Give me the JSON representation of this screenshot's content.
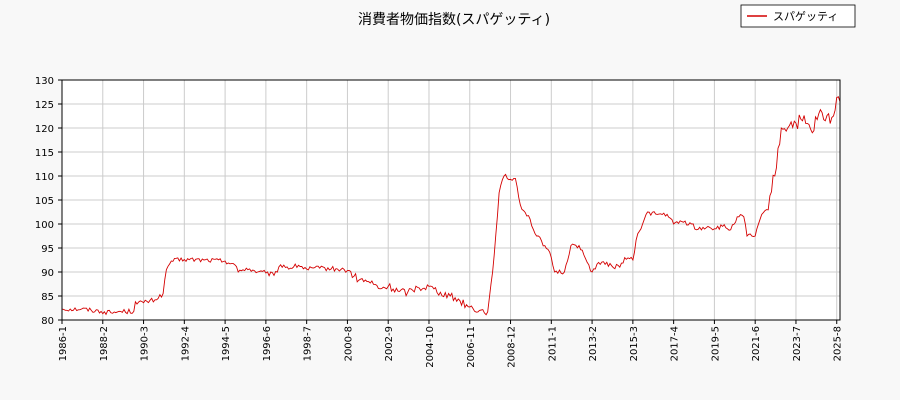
{
  "chart_data": {
    "type": "line",
    "title": "消費者物価指数(スパゲッティ)",
    "xlabel": "",
    "ylabel": "",
    "ylim": [
      80,
      130
    ],
    "y_ticks": [
      80,
      85,
      90,
      95,
      100,
      105,
      110,
      115,
      120,
      125,
      130
    ],
    "x_range": [
      "1986-1",
      "2025-10"
    ],
    "x_ticks": [
      "1986-1",
      "1988-2",
      "1990-3",
      "1992-4",
      "1994-5",
      "1996-6",
      "1998-7",
      "2000-8",
      "2002-9",
      "2004-10",
      "2006-11",
      "2008-12",
      "2011-1",
      "2013-2",
      "2015-3",
      "2017-4",
      "2019-5",
      "2021-6",
      "2023-7",
      "2025-8"
    ],
    "grid": true,
    "legend_position": "top-right",
    "series": [
      {
        "name": "スパゲッティ",
        "color": "#d40000",
        "points": [
          [
            "1986-1",
            82.3
          ],
          [
            "1987-1",
            82.3
          ],
          [
            "1988-1",
            81.8
          ],
          [
            "1988-7",
            81.5
          ],
          [
            "1989-1",
            81.8
          ],
          [
            "1989-9",
            81.8
          ],
          [
            "1989-10",
            83.8
          ],
          [
            "1990-3",
            83.6
          ],
          [
            "1990-10",
            84.2
          ],
          [
            "1991-3",
            85.5
          ],
          [
            "1991-5",
            90.5
          ],
          [
            "1991-8",
            92.3
          ],
          [
            "1992-4",
            92.6
          ],
          [
            "1993-4",
            92.5
          ],
          [
            "1994-5",
            92.3
          ],
          [
            "1994-11",
            91.5
          ],
          [
            "1995-1",
            90.0
          ],
          [
            "1995-6",
            90.8
          ],
          [
            "1996-1",
            90.0
          ],
          [
            "1996-6",
            89.8
          ],
          [
            "1996-11",
            89.3
          ],
          [
            "1997-3",
            91.5
          ],
          [
            "1997-9",
            90.8
          ],
          [
            "1998-2",
            91.4
          ],
          [
            "1998-7",
            90.6
          ],
          [
            "1999-3",
            90.8
          ],
          [
            "2000-2",
            90.6
          ],
          [
            "2000-8",
            90.3
          ],
          [
            "2001-3",
            88.3
          ],
          [
            "2001-9",
            88.0
          ],
          [
            "2002-4",
            86.5
          ],
          [
            "2002-9",
            87.0
          ],
          [
            "2003-3",
            86.0
          ],
          [
            "2003-9",
            85.8
          ],
          [
            "2004-3",
            86.8
          ],
          [
            "2004-10",
            87.0
          ],
          [
            "2005-5",
            85.8
          ],
          [
            "2005-11",
            85.0
          ],
          [
            "2006-5",
            84.0
          ],
          [
            "2006-11",
            82.7
          ],
          [
            "2007-5",
            82.0
          ],
          [
            "2007-10",
            81.7
          ],
          [
            "2007-11",
            84.5
          ],
          [
            "2008-1",
            90.0
          ],
          [
            "2008-3",
            98.0
          ],
          [
            "2008-5",
            106.5
          ],
          [
            "2008-8",
            110.0
          ],
          [
            "2008-12",
            109.3
          ],
          [
            "2009-3",
            109.5
          ],
          [
            "2009-6",
            104.0
          ],
          [
            "2009-12",
            101.0
          ],
          [
            "2010-3",
            98.0
          ],
          [
            "2010-9",
            95.5
          ],
          [
            "2011-1",
            93.0
          ],
          [
            "2011-3",
            90.0
          ],
          [
            "2011-9",
            90.0
          ],
          [
            "2012-1",
            95.5
          ],
          [
            "2012-6",
            95.5
          ],
          [
            "2012-11",
            92.0
          ],
          [
            "2013-2",
            90.0
          ],
          [
            "2013-6",
            92.0
          ],
          [
            "2014-2",
            91.3
          ],
          [
            "2014-7",
            91.0
          ],
          [
            "2014-10",
            93.0
          ],
          [
            "2015-3",
            92.5
          ],
          [
            "2015-6",
            98.0
          ],
          [
            "2015-9",
            100.0
          ],
          [
            "2015-12",
            102.5
          ],
          [
            "2016-6",
            102.0
          ],
          [
            "2016-12",
            102.0
          ],
          [
            "2017-4",
            100.0
          ],
          [
            "2017-9",
            100.5
          ],
          [
            "2018-3",
            100.0
          ],
          [
            "2018-6",
            98.8
          ],
          [
            "2019-1",
            99.5
          ],
          [
            "2019-5",
            99.0
          ],
          [
            "2019-10",
            99.5
          ],
          [
            "2020-3",
            98.8
          ],
          [
            "2020-7",
            101.5
          ],
          [
            "2020-11",
            101.5
          ],
          [
            "2021-1",
            97.5
          ],
          [
            "2021-6",
            97.5
          ],
          [
            "2021-9",
            101.0
          ],
          [
            "2022-1",
            103.0
          ],
          [
            "2022-6",
            110.0
          ],
          [
            "2022-10",
            120.0
          ],
          [
            "2023-3",
            120.5
          ],
          [
            "2023-7",
            121.0
          ],
          [
            "2023-11",
            121.5
          ],
          [
            "2024-5",
            119.0
          ],
          [
            "2024-9",
            123.0
          ],
          [
            "2025-1",
            121.5
          ],
          [
            "2025-6",
            122.5
          ],
          [
            "2025-9",
            126.5
          ],
          [
            "2025-10",
            125.5
          ]
        ]
      }
    ]
  }
}
